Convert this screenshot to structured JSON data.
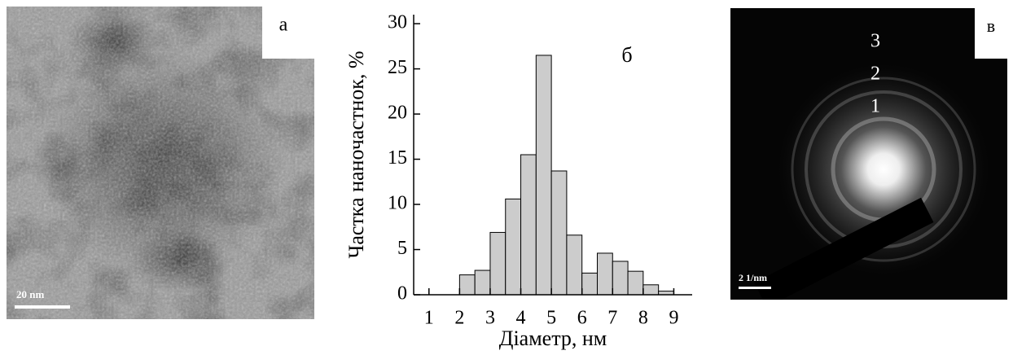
{
  "panel_a": {
    "label": "а",
    "scale_bar": "20 nm"
  },
  "chart_data": {
    "type": "histogram",
    "panel_label": "б",
    "xlabel": "Діаметр, нм",
    "ylabel": "Частка наночастнок, %",
    "bins": [
      1.0,
      1.5,
      2.0,
      2.5,
      3.0,
      3.5,
      4.0,
      4.5,
      5.0,
      5.5,
      6.0,
      6.5,
      7.0,
      7.5,
      8.0,
      8.5,
      9.0
    ],
    "values": [
      0,
      0,
      2.2,
      2.7,
      6.9,
      10.6,
      15.5,
      26.5,
      13.7,
      6.6,
      2.4,
      4.6,
      3.7,
      2.6,
      1.1,
      0.4
    ],
    "color": "#cccccc",
    "xlim": [
      0.5,
      9.6
    ],
    "xticks": [
      1,
      2,
      3,
      4,
      5,
      6,
      7,
      8,
      9
    ],
    "ylim": [
      0,
      31
    ],
    "yticks": [
      0,
      5,
      10,
      15,
      20,
      25,
      30
    ]
  },
  "panel_c": {
    "label": "в",
    "scale_bar": "2 1/nm",
    "rings": [
      "3",
      "2",
      "1"
    ]
  }
}
